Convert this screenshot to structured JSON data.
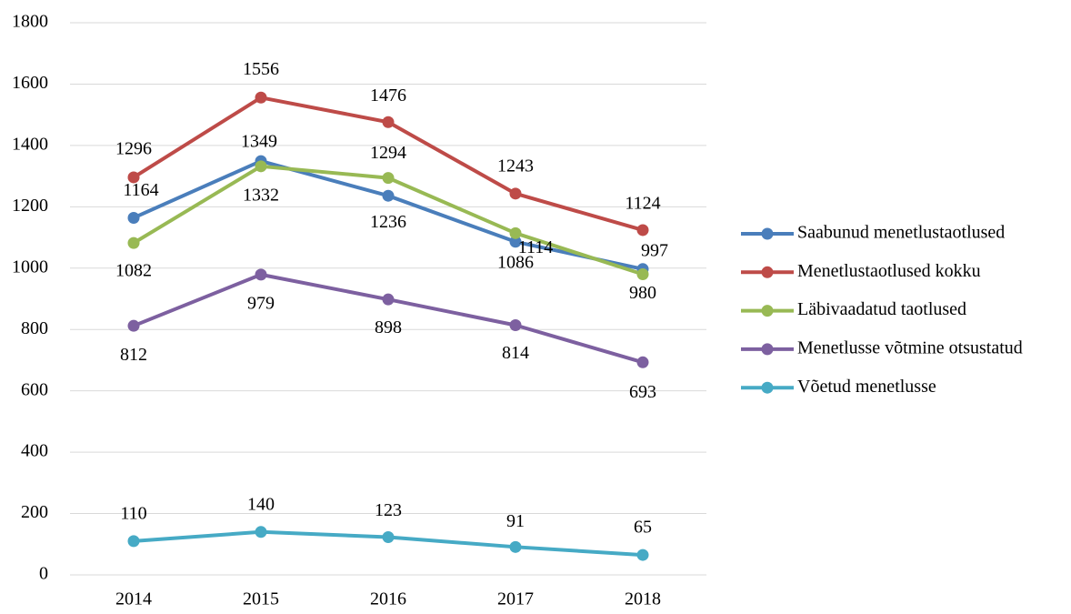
{
  "chart_data": {
    "type": "line",
    "categories": [
      "2014",
      "2015",
      "2016",
      "2017",
      "2018"
    ],
    "series": [
      {
        "name": "Saabunud menetlustaotlused",
        "color": "#4a7ebb",
        "values": [
          1164,
          1349,
          1236,
          1086,
          997
        ]
      },
      {
        "name": "Menetlustaotlused kokku",
        "color": "#be4b48",
        "values": [
          1296,
          1556,
          1476,
          1243,
          1124
        ]
      },
      {
        "name": "Läbivaadatud taotlused",
        "color": "#98b954",
        "values": [
          1082,
          1332,
          1294,
          1114,
          980
        ]
      },
      {
        "name": "Menetlusse võtmine otsustatud",
        "color": "#7d60a0",
        "values": [
          812,
          979,
          898,
          814,
          693
        ]
      },
      {
        "name": "Võetud menetlusse",
        "color": "#46aac5",
        "values": [
          110,
          140,
          123,
          91,
          65
        ]
      }
    ],
    "ylim": [
      0,
      1800
    ],
    "yticks": [
      0,
      200,
      400,
      600,
      800,
      1000,
      1200,
      1400,
      1600,
      1800
    ],
    "grid": true,
    "legend": "right"
  }
}
